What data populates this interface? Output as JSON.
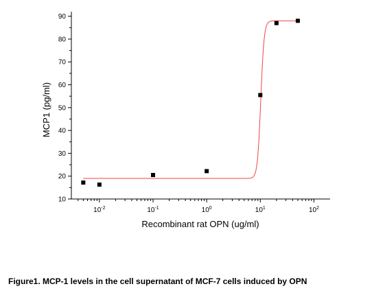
{
  "chart_data": {
    "type": "scatter",
    "title": "",
    "xlabel": "Recombinant rat OPN (ug/ml)",
    "ylabel": "MCP1 (pg/ml)",
    "x_scale": "log",
    "xlim": [
      0.003,
      200
    ],
    "ylim": [
      10,
      92
    ],
    "x_ticks": [
      {
        "value": 0.01,
        "base": "10",
        "exp": "-2"
      },
      {
        "value": 0.1,
        "base": "10",
        "exp": "-1"
      },
      {
        "value": 1,
        "base": "10",
        "exp": "0"
      },
      {
        "value": 10,
        "base": "10",
        "exp": "1"
      },
      {
        "value": 100,
        "base": "10",
        "exp": "2"
      }
    ],
    "y_ticks": [
      10,
      20,
      30,
      40,
      50,
      60,
      70,
      80,
      90
    ],
    "grid": false,
    "series": [
      {
        "type": "scatter",
        "marker": "square",
        "color": "#000000",
        "x": [
          0.005,
          0.01,
          0.1,
          1,
          10,
          20,
          50
        ],
        "y": [
          17.2,
          16.3,
          20.5,
          22.2,
          55.5,
          87.0,
          88.0
        ]
      },
      {
        "type": "line",
        "color": "#ee4444",
        "fit": "sigmoidal",
        "bottom": 19.0,
        "top": 88.0,
        "x0": 10.2,
        "hill": 14
      }
    ]
  },
  "caption": "Figure1. MCP-1 levels in the cell supernatant of MCF-7 cells induced by OPN"
}
